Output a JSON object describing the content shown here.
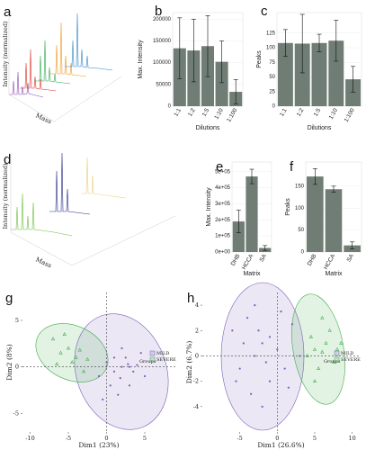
{
  "chart_data": [
    {
      "type": "spectra",
      "label": "a",
      "xlabel": "Mass",
      "ylabel": "Intensity (normalized)"
    },
    {
      "type": "bar",
      "label": "b",
      "xlabel": "Dilutions",
      "ylabel": "Max. Intensity",
      "categories": [
        "1:1",
        "1:2",
        "1:5",
        "1:10",
        "1:100"
      ],
      "values": [
        133000,
        128000,
        138000,
        102000,
        33000
      ],
      "errors": [
        70000,
        72000,
        70000,
        48000,
        28000
      ],
      "color": "#6f7d74",
      "ylim": [
        0,
        215000
      ],
      "yticks": [
        0,
        50000,
        100000,
        150000,
        200000
      ]
    },
    {
      "type": "bar",
      "label": "c",
      "xlabel": "Dilutions",
      "ylabel": "Peaks",
      "categories": [
        "1:1",
        "1:2",
        "1:5",
        "1:10",
        "1:100"
      ],
      "values": [
        108,
        107,
        108,
        112,
        46
      ],
      "errors": [
        23,
        50,
        15,
        35,
        22
      ],
      "color": "#6f7d74",
      "ylim": [
        0,
        160
      ],
      "yticks": [
        0,
        25,
        50,
        75,
        100,
        125
      ]
    },
    {
      "type": "spectra",
      "label": "d",
      "xlabel": "Mass",
      "ylabel": "Intensity (normalized)"
    },
    {
      "type": "bar",
      "label": "e",
      "xlabel": "Matrix",
      "ylabel": "Max. Intensity",
      "categories": [
        "DHB",
        "HCCA",
        "SA"
      ],
      "values": [
        190000,
        470000,
        25000
      ],
      "errors": [
        70000,
        45000,
        15000
      ],
      "color": "#6f7d74",
      "ylim": [
        0,
        560000
      ],
      "yticks": [
        {
          "value": 0,
          "label": "0e+00"
        },
        {
          "value": 100000,
          "label": "1e+05"
        },
        {
          "value": 200000,
          "label": "2e+05"
        },
        {
          "value": 300000,
          "label": "3e+05"
        },
        {
          "value": 400000,
          "label": "4e+05"
        },
        {
          "value": 500000,
          "label": "5e+05"
        }
      ]
    },
    {
      "type": "bar",
      "label": "f",
      "xlabel": "Matrix",
      "ylabel": "Peaks",
      "categories": [
        "DHB",
        "HCCA",
        "SA"
      ],
      "values": [
        172,
        143,
        15
      ],
      "errors": [
        18,
        7,
        8
      ],
      "color": "#6f7d74",
      "ylim": [
        0,
        205
      ],
      "yticks": [
        0,
        50,
        100,
        150
      ]
    },
    {
      "type": "scatter",
      "label": "g",
      "xlabel": "Dim1 (23%)",
      "ylabel": "Dim2 (8%)",
      "legend_title": "Groups",
      "xlim": [
        -11,
        9
      ],
      "ylim": [
        -7,
        8
      ],
      "xticks": [
        -10,
        -5,
        0,
        5
      ],
      "yticks": [
        -5,
        0,
        5
      ],
      "series": [
        {
          "name": "MILD",
          "color": "#7b5fb8",
          "marker": "circle",
          "x": [
            -1,
            0,
            1,
            2,
            2.5,
            3,
            3.5,
            4,
            0.5,
            1.5,
            2,
            4.5,
            5,
            1,
            3,
            -0.5,
            2.8,
            1.8
          ],
          "y": [
            -1,
            0.5,
            -0.5,
            0,
            1,
            0,
            -0.5,
            0.2,
            -2,
            -3,
            2,
            1.5,
            -1,
            1,
            -2,
            -3.5,
            0.3,
            -1.2
          ]
        },
        {
          "name": "SEVERE",
          "color": "#3fae49",
          "marker": "triangle",
          "x": [
            -7,
            -6,
            -5,
            -4.5,
            -4,
            -3,
            -5.5,
            -6.5,
            -3.5,
            -2.5
          ],
          "y": [
            3,
            1.5,
            2,
            0.5,
            1,
            -0.5,
            3.5,
            0.3,
            1.8,
            0.8
          ]
        }
      ]
    },
    {
      "type": "scatter",
      "label": "h",
      "xlabel": "Dim1 (26.6%)",
      "ylabel": "Dim2 (6.7%)",
      "legend_title": "Groups",
      "xlim": [
        -10,
        11
      ],
      "ylim": [
        -6,
        5
      ],
      "xticks": [
        -5,
        0,
        5,
        10
      ],
      "yticks": [
        -4,
        -2,
        0,
        2,
        4
      ],
      "series": [
        {
          "name": "MILD",
          "color": "#7b5fb8",
          "marker": "circle",
          "x": [
            -6,
            -5,
            -4,
            -3,
            -2,
            -1,
            0,
            1,
            2,
            -3.5,
            -2.5,
            -1.5,
            -4.5,
            0.5,
            1.5,
            -2,
            -5.5,
            -1,
            3,
            -3
          ],
          "y": [
            2,
            -1,
            3,
            0,
            1,
            -2,
            0.5,
            -1,
            2.5,
            -3,
            2,
            -0.5,
            1,
            3.5,
            -2.5,
            -4,
            -2,
            1.5,
            0,
            4
          ]
        },
        {
          "name": "SEVERE",
          "color": "#3fae49",
          "marker": "triangle",
          "x": [
            4,
            5,
            5.5,
            6,
            6.5,
            7,
            8,
            5,
            7.5,
            4.5,
            6,
            8.5
          ],
          "y": [
            0,
            0.5,
            -1,
            0.3,
            1,
            2,
            0.5,
            -2,
            -0.5,
            1.5,
            3,
            1
          ]
        }
      ]
    }
  ]
}
